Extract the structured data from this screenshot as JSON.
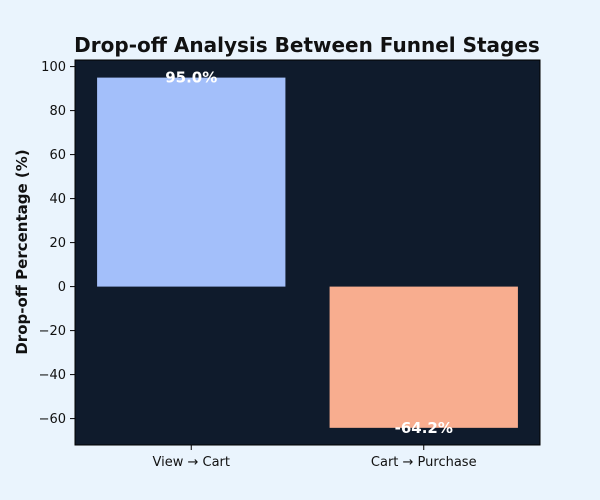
{
  "chart_data": {
    "type": "bar",
    "title": "Drop-off Analysis Between Funnel Stages",
    "xlabel": "",
    "ylabel": "Drop-off Percentage (%)",
    "categories": [
      "View → Cart",
      "Cart → Purchase"
    ],
    "values": [
      95.0,
      -64.2
    ],
    "value_labels": [
      "95.0%",
      "-64.2%"
    ],
    "colors": [
      "#a3bffa",
      "#f8ad8f"
    ],
    "ylim": [
      -72,
      103
    ],
    "yticks": [
      100,
      80,
      60,
      40,
      20,
      0,
      -20,
      -40,
      -60
    ],
    "ytick_labels": [
      "100",
      "80",
      "60",
      "40",
      "20",
      "0",
      "−20",
      "−40",
      "−60"
    ],
    "grid": false,
    "legend": "none",
    "plot_background": "#0f1b2c",
    "page_background": "#eaf4fd",
    "value_label_color": "#ffffff"
  }
}
